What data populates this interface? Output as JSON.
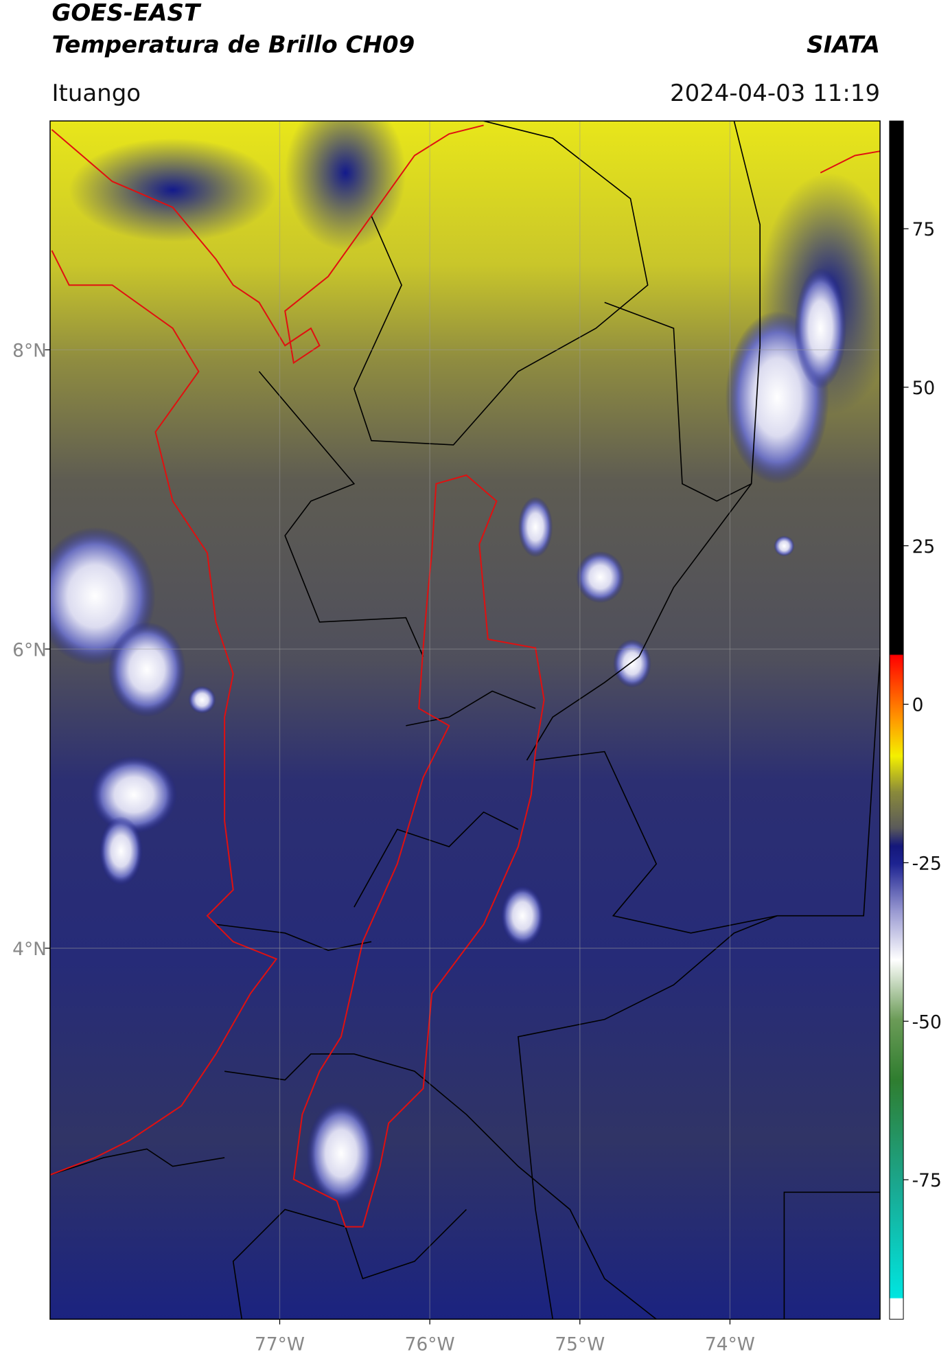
{
  "chart_data": {
    "type": "map",
    "title": "GOES-EAST",
    "subtitle": "Temperatura de Brillo CH09",
    "source": "SIATA",
    "location": "Ituango",
    "datetime": "2024-04-03 11:19",
    "xlim": [
      -78.53,
      -73.0
    ],
    "ylim": [
      1.52,
      9.53
    ],
    "xticks": [
      {
        "value": -77,
        "label": "77°W"
      },
      {
        "value": -76,
        "label": "76°W"
      },
      {
        "value": -75,
        "label": "75°W"
      },
      {
        "value": -74,
        "label": "74°W"
      }
    ],
    "yticks": [
      {
        "value": 8,
        "label": "8°N"
      },
      {
        "value": 6,
        "label": "6°N"
      },
      {
        "value": 4,
        "label": "4°N"
      }
    ],
    "grid": true,
    "colorbar": {
      "clim": [
        -97,
        92
      ],
      "ticks": [
        75,
        50,
        25,
        0,
        -25,
        -50,
        -75
      ]
    }
  }
}
